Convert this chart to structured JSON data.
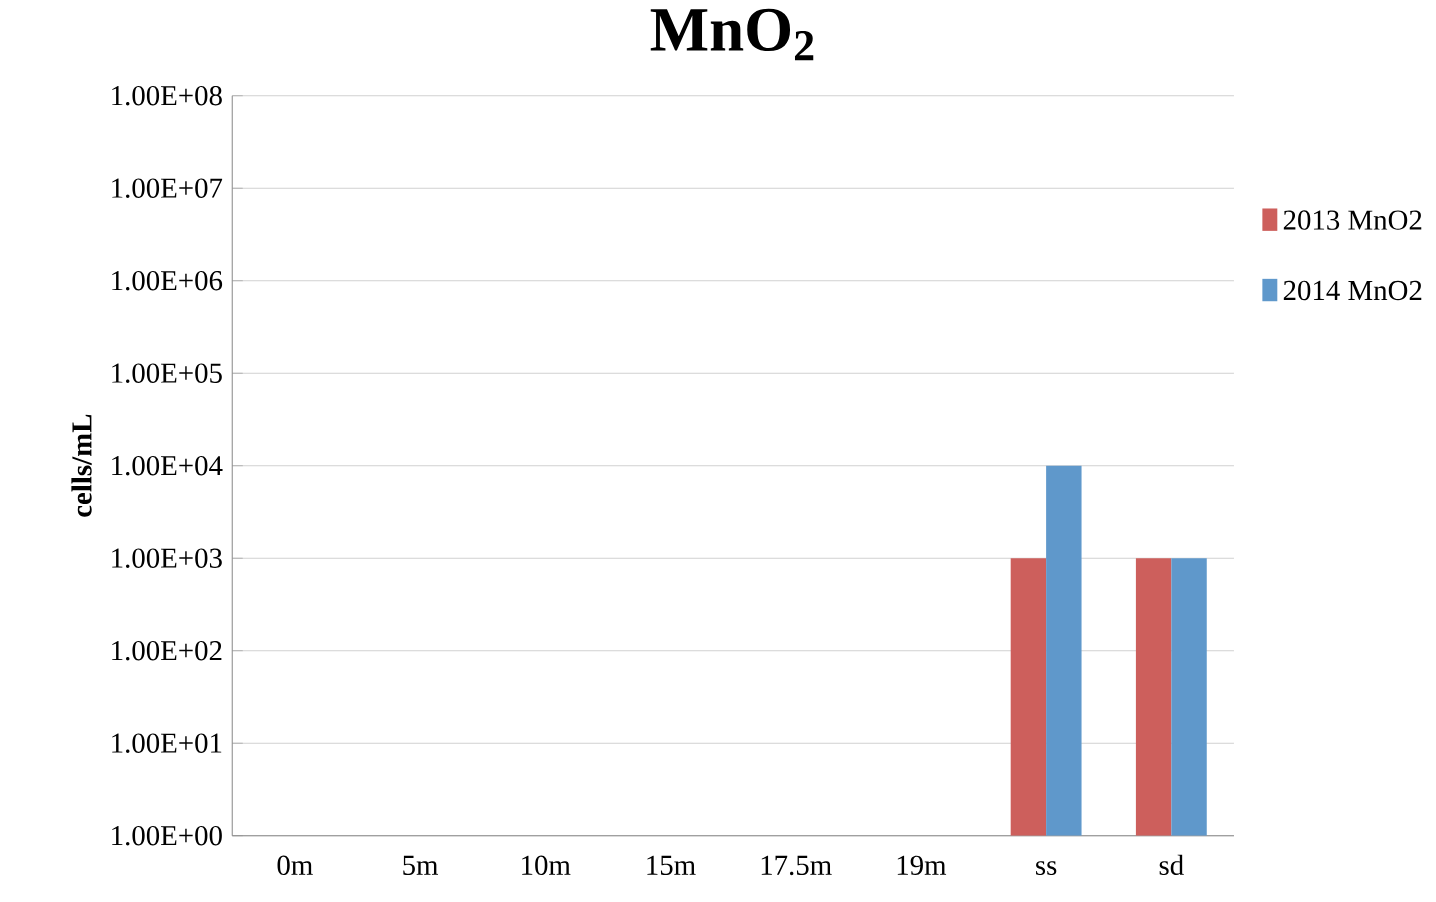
{
  "chart_data": {
    "type": "bar",
    "title": "MnO$_{2}$",
    "ylabel": "cells/mL",
    "categories": [
      "0m",
      "5m",
      "10m",
      "15m",
      "17.5m",
      "19m",
      "ss",
      "sd"
    ],
    "series": [
      {
        "name": "2013 MnO2",
        "color": "#cd5f5c",
        "values": [
          null,
          null,
          null,
          null,
          null,
          null,
          1000,
          1000
        ]
      },
      {
        "name": "2014 MnO2",
        "color": "#5f98cb",
        "values": [
          null,
          null,
          null,
          null,
          null,
          null,
          10000,
          1000
        ]
      }
    ],
    "log": "y",
    "ylim": [
      1,
      100000000
    ],
    "yticks": [
      {
        "value": 1,
        "label": "1.00E+00"
      },
      {
        "value": 10,
        "label": "1.00E+01"
      },
      {
        "value": 100,
        "label": "1.00E+02"
      },
      {
        "value": 1000,
        "label": "1.00E+03"
      },
      {
        "value": 10000,
        "label": "1.00E+04"
      },
      {
        "value": 100000,
        "label": "1.00E+05"
      },
      {
        "value": 1000000,
        "label": "1.00E+06"
      },
      {
        "value": 10000000,
        "label": "1.00E+07"
      },
      {
        "value": 100000000,
        "label": "1.00E+08"
      }
    ],
    "grid": "y",
    "legend": "right"
  }
}
